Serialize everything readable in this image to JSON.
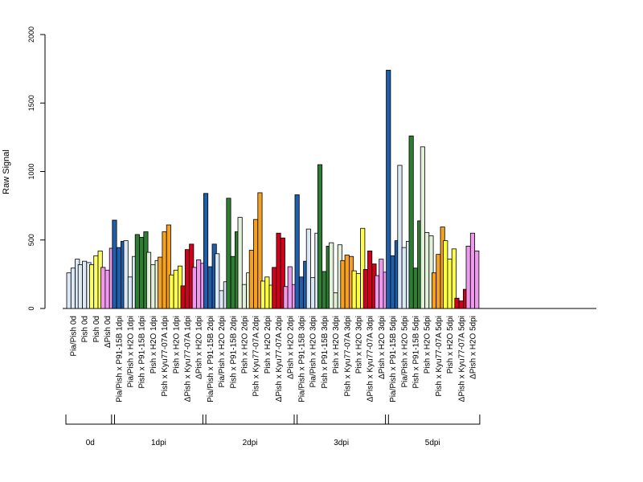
{
  "chart_data": {
    "type": "bar",
    "title": "",
    "xlabel": "",
    "ylabel": "Raw Signal",
    "ylim": [
      0,
      2000
    ],
    "yticks": [
      "0",
      "500",
      "1000",
      "1500",
      "2000"
    ],
    "categories": [
      "Pia/Pish 0d",
      "Pish 0d",
      "Pish 0d",
      "ΔPish 0d",
      "Pia/Pish x P91-15B 1dpi",
      "Pia/Pish x H2O 1dpi",
      "Pish x P91-15B 1dpi",
      "Pish x H2O 1dpi",
      "Pish x Kyu77-07A 1dpi",
      "Pish x H2O 1dpi",
      "ΔPish x Kyu77-07A 1dpi",
      "ΔPish x H2O 1dpi",
      "Pia/Pish x P91-15B 2dpi",
      "Pia/Pish x H2O 2dpi",
      "Pish x P91-15B 2dpi",
      "Pish x H2O 2dpi",
      "Pish x Kyu77-07A 2dpi",
      "Pish x H2O 2dpi",
      "ΔPish x Kyu77-07A 2dpi",
      "ΔPish x H2O 2dpi",
      "Pia/Pish x P91-15B 3dpi",
      "Pia/Pish x H2O 3dpi",
      "Pish x P91-15B 3dpi",
      "Pish x H2O 3dpi",
      "Pish x Kyu77-07A 3dpi",
      "Pish x H2O 3dpi",
      "ΔPish x Kyu77-07A 3dpi",
      "ΔPish x H2O 3dpi",
      "Pia/Pish x P91-15B 5dpi",
      "Pia/Pish x H2O 5dpi",
      "Pish x P91-15B 5dpi",
      "Pish x H2O 5dpi",
      "Pish x Kyu77-07A 5dpi",
      "Pish x H2O 5dpi",
      "ΔPish x Kyu77-07A 5dpi",
      "ΔPish x H2O 5dpi"
    ],
    "group_colors": [
      "#dbe8f6",
      "#dfe9f3",
      "#ffff66",
      "#ee99ee",
      "#1f5ea8",
      "#dbe8f6",
      "#2e7d32",
      "#e2f0da",
      "#f5a020",
      "#ffff44",
      "#d0021b",
      "#ee99ee",
      "#1f5ea8",
      "#dbe8f6",
      "#2e7d32",
      "#e2f0da",
      "#f5a020",
      "#ffff44",
      "#d0021b",
      "#ee99ee",
      "#1f5ea8",
      "#dbe8f6",
      "#2e7d32",
      "#e2f0da",
      "#f5a020",
      "#ffff44",
      "#d0021b",
      "#ee99ee",
      "#1f5ea8",
      "#dbe8f6",
      "#2e7d32",
      "#e2f0da",
      "#f5a020",
      "#ffff44",
      "#d0021b",
      "#ee99ee"
    ],
    "values": [
      [
        260,
        295,
        360
      ],
      [
        320,
        345,
        335
      ],
      [
        320,
        385,
        420
      ],
      [
        300,
        280,
        440
      ],
      [
        645,
        445,
        490
      ],
      [
        495,
        230,
        380
      ],
      [
        540,
        520,
        560
      ],
      [
        410,
        320,
        350
      ],
      [
        375,
        560,
        610
      ],
      [
        245,
        280,
        310
      ],
      [
        165,
        430,
        470
      ],
      [
        300,
        355,
        330
      ],
      [
        840,
        305,
        470
      ],
      [
        400,
        130,
        195
      ],
      [
        805,
        380,
        560
      ],
      [
        665,
        175,
        260
      ],
      [
        425,
        650,
        845
      ],
      [
        200,
        230,
        170
      ],
      [
        300,
        550,
        515
      ],
      [
        160,
        305,
        175
      ],
      [
        830,
        230,
        345
      ],
      [
        580,
        225,
        550
      ],
      [
        1050,
        270,
        455
      ],
      [
        480,
        115,
        465
      ],
      [
        350,
        390,
        380
      ],
      [
        275,
        255,
        585
      ],
      [
        285,
        420,
        325
      ],
      [
        240,
        360,
        265
      ],
      [
        1740,
        385,
        495
      ],
      [
        1045,
        445,
        490
      ],
      [
        1260,
        295,
        640
      ],
      [
        1180,
        555,
        530
      ],
      [
        260,
        395,
        595
      ],
      [
        495,
        360,
        435
      ],
      [
        75,
        55,
        140
      ],
      [
        455,
        550,
        420
      ]
    ],
    "time_groups": [
      {
        "label": "0d",
        "start": 0,
        "end": 3
      },
      {
        "label": "1dpi",
        "start": 4,
        "end": 11
      },
      {
        "label": "2dpi",
        "start": 12,
        "end": 19
      },
      {
        "label": "3dpi",
        "start": 20,
        "end": 27
      },
      {
        "label": "5dpi",
        "start": 28,
        "end": 35
      }
    ]
  }
}
